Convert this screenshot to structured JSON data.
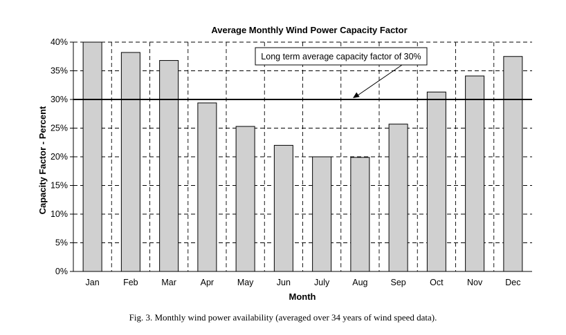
{
  "chart_data": {
    "type": "bar",
    "title": "Average Monthly Wind Power Capacity Factor",
    "xlabel": "Month",
    "ylabel": "Capacity Factor - Percent",
    "categories": [
      "Jan",
      "Feb",
      "Mar",
      "Apr",
      "May",
      "Jun",
      "July",
      "Aug",
      "Sep",
      "Oct",
      "Nov",
      "Dec"
    ],
    "values": [
      40.0,
      38.2,
      36.8,
      29.4,
      25.3,
      22.0,
      20.0,
      19.9,
      25.7,
      31.3,
      34.1,
      37.5
    ],
    "ylim": [
      0,
      40
    ],
    "yticks": [
      "0%",
      "5%",
      "10%",
      "15%",
      "20%",
      "25%",
      "30%",
      "35%",
      "40%"
    ],
    "grid": "horizontal dashed",
    "bar_color": "#d0d0d0",
    "reference_line": {
      "value": 30
    },
    "annotation": "Long term average capacity factor of 30%"
  },
  "caption": "Fig. 3.  Monthly wind power availability (averaged over 34 years of wind speed data)."
}
